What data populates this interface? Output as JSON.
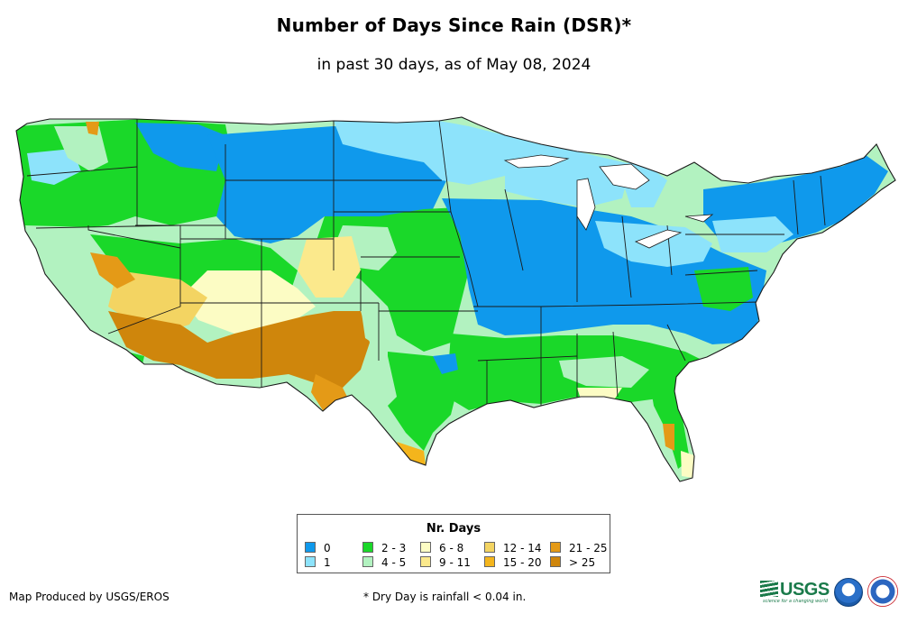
{
  "title": "Number of Days Since Rain (DSR)*",
  "subtitle": "in past 30 days, as of May 08, 2024",
  "legend": {
    "title": "Nr. Days",
    "items": [
      {
        "label": "0",
        "color": "#0f99ec"
      },
      {
        "label": "1",
        "color": "#8de3fb"
      },
      {
        "label": "2 - 3",
        "color": "#1ad829"
      },
      {
        "label": "4 - 5",
        "color": "#b2f2c0"
      },
      {
        "label": "6 - 8",
        "color": "#fcfcc4"
      },
      {
        "label": "9 - 11",
        "color": "#fbe98c"
      },
      {
        "label": "12 - 14",
        "color": "#f3d462"
      },
      {
        "label": "15 - 20",
        "color": "#f4b51c"
      },
      {
        "label": "21 - 25",
        "color": "#e49a17"
      },
      {
        "label": "> 25",
        "color": "#cf860c"
      }
    ]
  },
  "credit": "Map Produced by USGS/EROS",
  "footnote": "* Dry Day is rainfall < 0.04 in.",
  "logos": {
    "usgs": {
      "icon": "usgs-logo-icon",
      "text": "USGS",
      "tagline": "science for a changing world",
      "color": "#1a7a4a"
    },
    "noaa": {
      "icon": "noaa-logo-icon",
      "color": "#1b5aa8"
    },
    "nws": {
      "icon": "nws-logo-icon",
      "color": "#c8232c"
    }
  }
}
